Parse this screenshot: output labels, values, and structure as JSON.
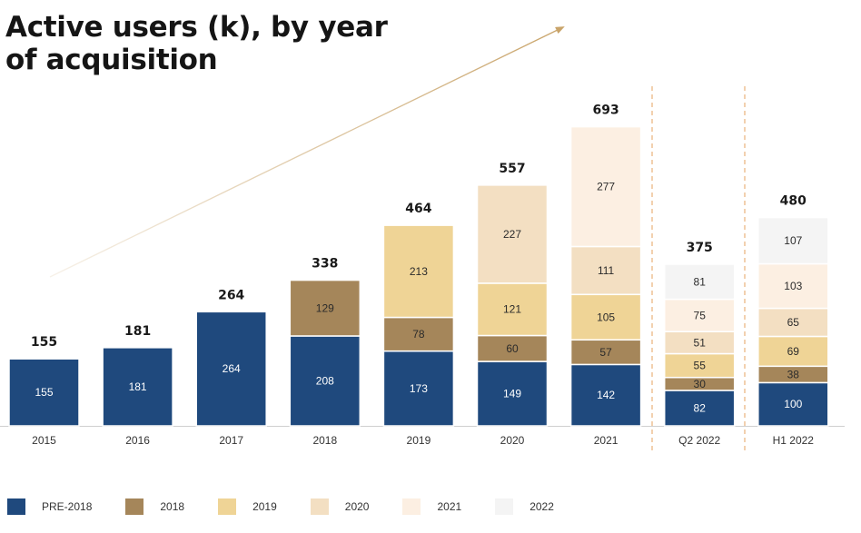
{
  "chart_data": {
    "type": "bar",
    "stacked": true,
    "title": "Active users (k), by year of acquisition",
    "xlabel": "",
    "ylabel": "",
    "categories": [
      "2015",
      "2016",
      "2017",
      "2018",
      "2019",
      "2020",
      "2021",
      "Q2 2022",
      "H1 2022"
    ],
    "totals": [
      155,
      181,
      264,
      338,
      464,
      557,
      693,
      375,
      480
    ],
    "series": [
      {
        "name": "PRE-2018",
        "color": "#1f497d",
        "values": [
          155,
          181,
          264,
          208,
          173,
          149,
          142,
          82,
          100
        ]
      },
      {
        "name": "2018",
        "color": "#a5865a",
        "values": [
          null,
          null,
          null,
          129,
          78,
          60,
          57,
          30,
          38
        ]
      },
      {
        "name": "2019",
        "color": "#efd496",
        "values": [
          null,
          null,
          null,
          null,
          213,
          121,
          105,
          55,
          69
        ]
      },
      {
        "name": "2020",
        "color": "#f3dfc2",
        "values": [
          null,
          null,
          null,
          null,
          null,
          227,
          111,
          51,
          65
        ]
      },
      {
        "name": "2021",
        "color": "#fcefe2",
        "values": [
          null,
          null,
          null,
          null,
          null,
          null,
          277,
          75,
          103
        ]
      },
      {
        "name": "2022",
        "color": "#f4f4f4",
        "values": [
          null,
          null,
          null,
          null,
          null,
          null,
          null,
          81,
          107
        ]
      }
    ],
    "legend_position": "bottom-left",
    "grid": false,
    "annotations": [
      "upward trend arrow",
      "dashed separators before Q2 2022 and H1 2022"
    ]
  }
}
